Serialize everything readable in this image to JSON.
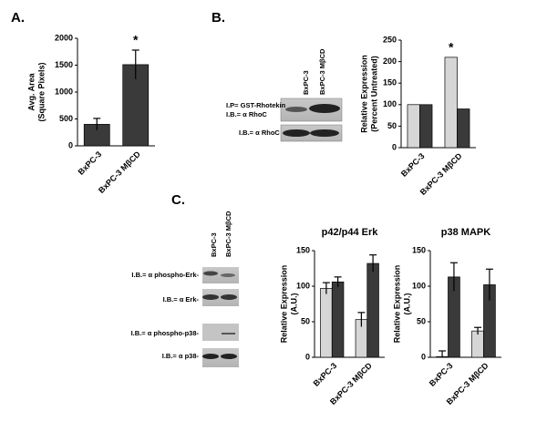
{
  "panel_labels": [
    "A.",
    "B.",
    "C."
  ],
  "blots": {
    "b": {
      "lanes": [
        "BxPC-3",
        "BxPC-3 MβCD"
      ],
      "rows": [
        [
          "I.P= GST-Rhotekin",
          "I.B.= α RhoC"
        ],
        [
          "I.B.= α RhoC"
        ]
      ]
    },
    "c": {
      "lanes": [
        "BxPC-3",
        "BxPC-3 MβCD"
      ],
      "rows": [
        "I.B.= α phospho-Erk-",
        "I.B.= α Erk-",
        "I.B.= α phospho-p38-",
        "I.B.= α p38-"
      ]
    }
  },
  "chart_data": [
    {
      "type": "bar",
      "categories": [
        "BxPC-3",
        "BxPC-3 MβCD"
      ],
      "series": [
        {
          "color": "#3a3a3a",
          "values": [
            400,
            1510
          ],
          "errors": [
            110,
            270
          ]
        }
      ],
      "ylim": [
        0,
        2000
      ],
      "yticks": [
        0,
        500,
        1000,
        1500,
        2000
      ],
      "y_label": [
        "Avg. Area",
        "(Square Pixels)"
      ],
      "annotation": "*"
    },
    {
      "type": "bar",
      "categories": [
        "BxPC-3",
        "BxPC-3 MβCD"
      ],
      "series": [
        {
          "color": "#d6d6d6",
          "values": [
            100,
            210
          ]
        },
        {
          "color": "#3a3a3a",
          "values": [
            100,
            90
          ]
        }
      ],
      "ylim": [
        0,
        250
      ],
      "yticks": [
        0,
        50,
        100,
        150,
        200,
        250
      ],
      "y_label": [
        "Relative Expression",
        "(Percent Untreated)"
      ],
      "annotation": "*"
    },
    {
      "type": "bar",
      "title": "p42/p44 Erk",
      "categories": [
        "BxPC-3",
        "BxPC-3 MβCD"
      ],
      "series": [
        {
          "color": "#d6d6d6",
          "values": [
            97,
            53
          ],
          "errors": [
            8,
            10
          ]
        },
        {
          "color": "#3a3a3a",
          "values": [
            106,
            132
          ],
          "errors": [
            7,
            12
          ]
        }
      ],
      "ylim": [
        0,
        150
      ],
      "yticks": [
        0,
        50,
        100,
        150
      ],
      "y_label": [
        "Relative Expression",
        "(A.U.)"
      ]
    },
    {
      "type": "bar",
      "title": "p38 MAPK",
      "categories": [
        "BxPC-3",
        "BxPC-3 MβCD"
      ],
      "series": [
        {
          "color": "#d6d6d6",
          "values": [
            1,
            37
          ],
          "errors": [
            8,
            5
          ]
        },
        {
          "color": "#3a3a3a",
          "values": [
            113,
            102
          ],
          "errors": [
            20,
            22
          ]
        }
      ],
      "ylim": [
        0,
        150
      ],
      "yticks": [
        0,
        50,
        100,
        150
      ],
      "y_label": [
        "Relative Expression",
        "(A.U.)"
      ]
    }
  ]
}
